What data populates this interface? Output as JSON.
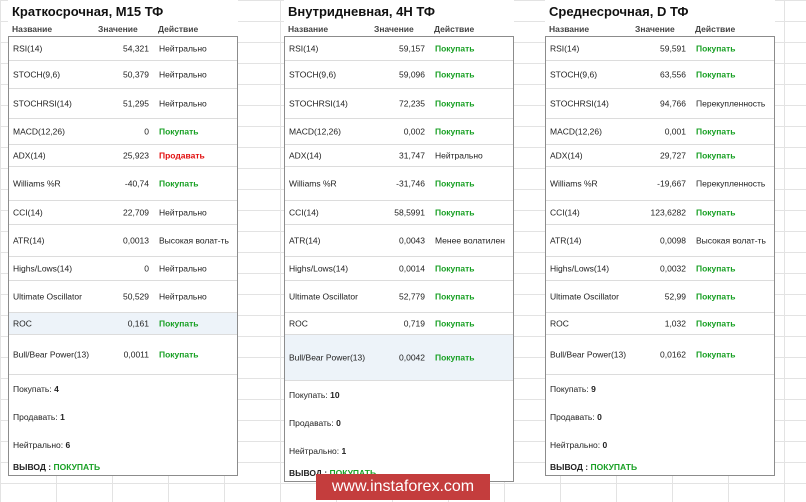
{
  "columns": {
    "name": "Название",
    "value": "Значение",
    "action": "Действие"
  },
  "panels": [
    {
      "title": "Краткосрочная, M15 ТФ",
      "rows": [
        {
          "name": "RSI(14)",
          "value": "54,321",
          "action": "Нейтрально",
          "status": "neutral"
        },
        {
          "name": "STOCH(9,6)",
          "value": "50,379",
          "action": "Нейтрально",
          "status": "neutral"
        },
        {
          "name": "STOCHRSI(14)",
          "value": "51,295",
          "action": "Нейтрально",
          "status": "neutral"
        },
        {
          "name": "MACD(12,26)",
          "value": "0",
          "action": "Покупать",
          "status": "buy"
        },
        {
          "name": "ADX(14)",
          "value": "25,923",
          "action": "Продавать",
          "status": "sell"
        },
        {
          "name": "Williams %R",
          "value": "-40,74",
          "action": "Покупать",
          "status": "buy"
        },
        {
          "name": "CCI(14)",
          "value": "22,709",
          "action": "Нейтрально",
          "status": "neutral"
        },
        {
          "name": "ATR(14)",
          "value": "0,0013",
          "action": "Высокая волат-ть",
          "status": "neutral"
        },
        {
          "name": "Highs/Lows(14)",
          "value": "0",
          "action": "Нейтрально",
          "status": "neutral"
        },
        {
          "name": "Ultimate Oscillator",
          "value": "50,529",
          "action": "Нейтрально",
          "status": "neutral"
        },
        {
          "name": "ROC",
          "value": "0,161",
          "action": "Покупать",
          "status": "buy"
        },
        {
          "name": "Bull/Bear Power(13)",
          "value": "0,0011",
          "action": "Покупать",
          "status": "buy"
        }
      ],
      "summary": {
        "buy_label": "Покупать:",
        "buy": "4",
        "sell_label": "Продавать:",
        "sell": "1",
        "neutral_label": "Нейтрально:",
        "neutral": "6"
      },
      "verdict_label": "ВЫВОД :",
      "verdict": "ПОКУПАТЬ"
    },
    {
      "title": "Внутридневная, 4H ТФ",
      "rows": [
        {
          "name": "RSI(14)",
          "value": "59,157",
          "action": "Покупать",
          "status": "buy"
        },
        {
          "name": "STOCH(9,6)",
          "value": "59,096",
          "action": "Покупать",
          "status": "buy"
        },
        {
          "name": "STOCHRSI(14)",
          "value": "72,235",
          "action": "Покупать",
          "status": "buy"
        },
        {
          "name": "MACD(12,26)",
          "value": "0,002",
          "action": "Покупать",
          "status": "buy"
        },
        {
          "name": "ADX(14)",
          "value": "31,747",
          "action": "Нейтрально",
          "status": "neutral"
        },
        {
          "name": "Williams %R",
          "value": "-31,746",
          "action": "Покупать",
          "status": "buy"
        },
        {
          "name": "CCI(14)",
          "value": "58,5991",
          "action": "Покупать",
          "status": "buy"
        },
        {
          "name": "ATR(14)",
          "value": "0,0043",
          "action": "Менее волатилен",
          "status": "neutral"
        },
        {
          "name": "Highs/Lows(14)",
          "value": "0,0014",
          "action": "Покупать",
          "status": "buy"
        },
        {
          "name": "Ultimate Oscillator",
          "value": "52,779",
          "action": "Покупать",
          "status": "buy"
        },
        {
          "name": "ROC",
          "value": "0,719",
          "action": "Покупать",
          "status": "buy"
        },
        {
          "name": "Bull/Bear Power(13)",
          "value": "0,0042",
          "action": "Покупать",
          "status": "buy"
        }
      ],
      "summary": {
        "buy_label": "Покупать:",
        "buy": "10",
        "sell_label": "Продавать:",
        "sell": "0",
        "neutral_label": "Нейтрально:",
        "neutral": "1"
      },
      "verdict_label": "ВЫВОД :",
      "verdict": "ПОКУПАТЬ"
    },
    {
      "title": "Среднесрочная, D ТФ",
      "rows": [
        {
          "name": "RSI(14)",
          "value": "59,591",
          "action": "Покупать",
          "status": "buy"
        },
        {
          "name": "STOCH(9,6)",
          "value": "63,556",
          "action": "Покупать",
          "status": "buy"
        },
        {
          "name": "STOCHRSI(14)",
          "value": "94,766",
          "action": "Перекупленность",
          "status": "neutral"
        },
        {
          "name": "MACD(12,26)",
          "value": "0,001",
          "action": "Покупать",
          "status": "buy"
        },
        {
          "name": "ADX(14)",
          "value": "29,727",
          "action": "Покупать",
          "status": "buy"
        },
        {
          "name": "Williams %R",
          "value": "-19,667",
          "action": "Перекупленность",
          "status": "neutral"
        },
        {
          "name": "CCI(14)",
          "value": "123,6282",
          "action": "Покупать",
          "status": "buy"
        },
        {
          "name": "ATR(14)",
          "value": "0,0098",
          "action": "Высокая волат-ть",
          "status": "neutral"
        },
        {
          "name": "Highs/Lows(14)",
          "value": "0,0032",
          "action": "Покупать",
          "status": "buy"
        },
        {
          "name": "Ultimate Oscillator",
          "value": "52,99",
          "action": "Покупать",
          "status": "buy"
        },
        {
          "name": "ROC",
          "value": "1,032",
          "action": "Покупать",
          "status": "buy"
        },
        {
          "name": "Bull/Bear Power(13)",
          "value": "0,0162",
          "action": "Покупать",
          "status": "buy"
        }
      ],
      "summary": {
        "buy_label": "Покупать:",
        "buy": "9",
        "sell_label": "Продавать:",
        "sell": "0",
        "neutral_label": "Нейтрально:",
        "neutral": "0"
      },
      "verdict_label": "ВЫВОД :",
      "verdict": "ПОКУПАТЬ"
    }
  ],
  "watermark": "www.instaforex.com"
}
